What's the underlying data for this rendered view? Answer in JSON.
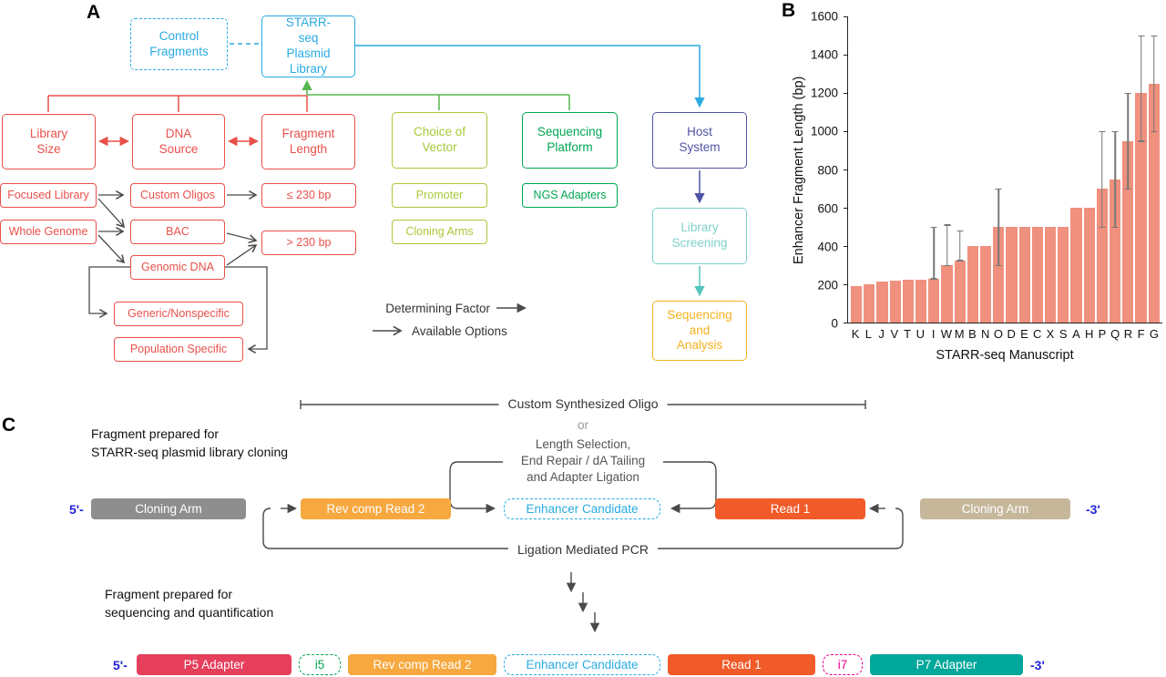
{
  "panel_labels": {
    "a": "A",
    "b": "B",
    "c": "C"
  },
  "flowchart": {
    "control_fragments": "Control Fragments",
    "starrseq_library": "STARR-seq Plasmid Library",
    "library_size": "Library Size",
    "dna_source": "DNA Source",
    "fragment_length": "Fragment Length",
    "choice_of_vector": "Choice of Vector",
    "sequencing_platform": "Sequencing Platform",
    "host_system": "Host System",
    "focused_library": "Focused Library",
    "whole_genome": "Whole Genome",
    "custom_oligos": "Custom Oligos",
    "bac": "BAC",
    "genomic_dna": "Genomic DNA",
    "le_230bp": "≤ 230 bp",
    "gt_230bp": "> 230 bp",
    "generic_nonspecific": "Generic/Nonspecific",
    "population_specific": "Population Specific",
    "promoter": "Promoter",
    "cloning_arms": "Cloning Arms",
    "ngs_adapters": "NGS Adapters",
    "library_screening": "Library Screening",
    "sequencing_and_analysis": "Sequencing and Analysis",
    "legend": {
      "determining_factor": "Determining Factor",
      "available_options": "Available Options"
    }
  },
  "chart_data": {
    "type": "bar",
    "title": "",
    "xlabel": "STARR-seq Manuscript",
    "ylabel": "Enhancer Fragment Length (bp)",
    "ylim": [
      0,
      1600
    ],
    "yticks": [
      0,
      200,
      400,
      600,
      800,
      1000,
      1200,
      1400,
      1600
    ],
    "grid": false,
    "legend_position": "none",
    "bar_color": "#f0907e",
    "categories": [
      "K",
      "L",
      "J",
      "V",
      "T",
      "U",
      "I",
      "W",
      "M",
      "B",
      "N",
      "O",
      "D",
      "E",
      "C",
      "X",
      "S",
      "A",
      "H",
      "P",
      "Q",
      "R",
      "F",
      "G"
    ],
    "values": [
      190,
      200,
      215,
      220,
      225,
      225,
      230,
      300,
      325,
      400,
      400,
      500,
      500,
      500,
      500,
      500,
      500,
      600,
      600,
      700,
      750,
      950,
      1200,
      1250
    ],
    "error_low": [
      null,
      null,
      null,
      null,
      null,
      null,
      230,
      300,
      325,
      null,
      null,
      300,
      null,
      null,
      null,
      null,
      null,
      null,
      null,
      500,
      500,
      700,
      950,
      1000
    ],
    "error_high": [
      null,
      null,
      null,
      null,
      null,
      null,
      500,
      510,
      480,
      null,
      null,
      700,
      null,
      null,
      null,
      null,
      null,
      null,
      null,
      1000,
      1000,
      1200,
      1500,
      1500
    ]
  },
  "panel_c": {
    "bracket_label": "Custom Synthesized Oligo",
    "or_label": "or",
    "alt_process_line1": "Length Selection,",
    "alt_process_line2": "End Repair / dA Tailing",
    "alt_process_line3": "and Adapter Ligation",
    "caption_cloning_line1": "Fragment prepared for",
    "caption_cloning_line2": "STARR-seq plasmid library cloning",
    "caption_sequencing_line1": "Fragment prepared for",
    "caption_sequencing_line2": "sequencing and quantification",
    "ligation_label": "Ligation Mediated PCR",
    "five_prime": "5'-",
    "three_prime": "-3'",
    "row1": {
      "cloning_arm_left": "Cloning Arm",
      "rev_comp_read2": "Rev comp Read 2",
      "enhancer_candidate": "Enhancer Candidate",
      "read1": "Read 1",
      "cloning_arm_right": "Cloning Arm"
    },
    "row2": {
      "p5_adapter": "P5 Adapter",
      "i5": "i5",
      "rev_comp_read2": "Rev comp Read 2",
      "enhancer_candidate": "Enhancer Candidate",
      "read1": "Read 1",
      "i7": "i7",
      "p7_adapter": "P7 Adapter"
    }
  },
  "colors": {
    "cyan": "#29abe2",
    "red": "#e8504a",
    "yellow_green": "#a9c938",
    "green": "#00a651",
    "indigo": "#5053a4",
    "light_teal": "#7fd1ca",
    "amber": "#f6b221",
    "bar_salmon": "#f0907e",
    "orange": "#f7a83f",
    "orange_red": "#f15a29",
    "tan": "#c6b79b",
    "crimson": "#e63f5b",
    "magenta": "#ec008c",
    "teal": "#00a79b",
    "gray_box": "#8e8e8e",
    "prime_blue": "#2323dd"
  }
}
